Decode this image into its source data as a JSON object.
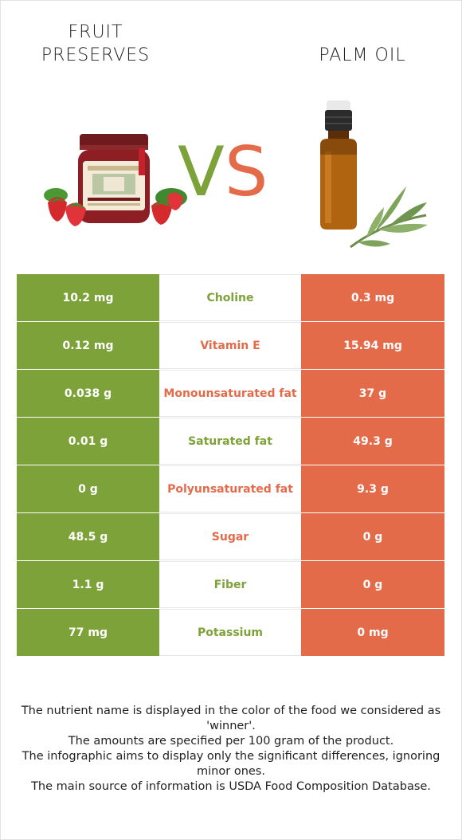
{
  "header": {
    "left_title_line1": "FRUIT",
    "left_title_line2": "PRESERVES",
    "right_title": "PALM OIL",
    "vs_v": "V",
    "vs_s": "S"
  },
  "colors": {
    "winner_left": "#7ea23a",
    "winner_right": "#e46b4a"
  },
  "icons": {
    "left": "jam-jar-with-strawberries-image",
    "right": "oil-bottle-with-leaves-image"
  },
  "rows": [
    {
      "left": "10.2 mg",
      "nutrient": "Choline",
      "right": "0.3 mg",
      "winner": "left"
    },
    {
      "left": "0.12 mg",
      "nutrient": "Vitamin E",
      "right": "15.94 mg",
      "winner": "right"
    },
    {
      "left": "0.038 g",
      "nutrient": "Monounsaturated fat",
      "right": "37 g",
      "winner": "right"
    },
    {
      "left": "0.01 g",
      "nutrient": "Saturated fat",
      "right": "49.3 g",
      "winner": "left"
    },
    {
      "left": "0 g",
      "nutrient": "Polyunsaturated fat",
      "right": "9.3 g",
      "winner": "right"
    },
    {
      "left": "48.5 g",
      "nutrient": "Sugar",
      "right": "0 g",
      "winner": "right"
    },
    {
      "left": "1.1 g",
      "nutrient": "Fiber",
      "right": "0 g",
      "winner": "left"
    },
    {
      "left": "77 mg",
      "nutrient": "Potassium",
      "right": "0 mg",
      "winner": "left"
    }
  ],
  "footnotes": [
    "The nutrient name is displayed in the color of the food we considered as 'winner'.",
    "The amounts are specified per 100 gram of the product.",
    "The infographic aims to display only the significant differences, ignoring minor ones.",
    "The main source of information is USDA Food Composition Database."
  ]
}
